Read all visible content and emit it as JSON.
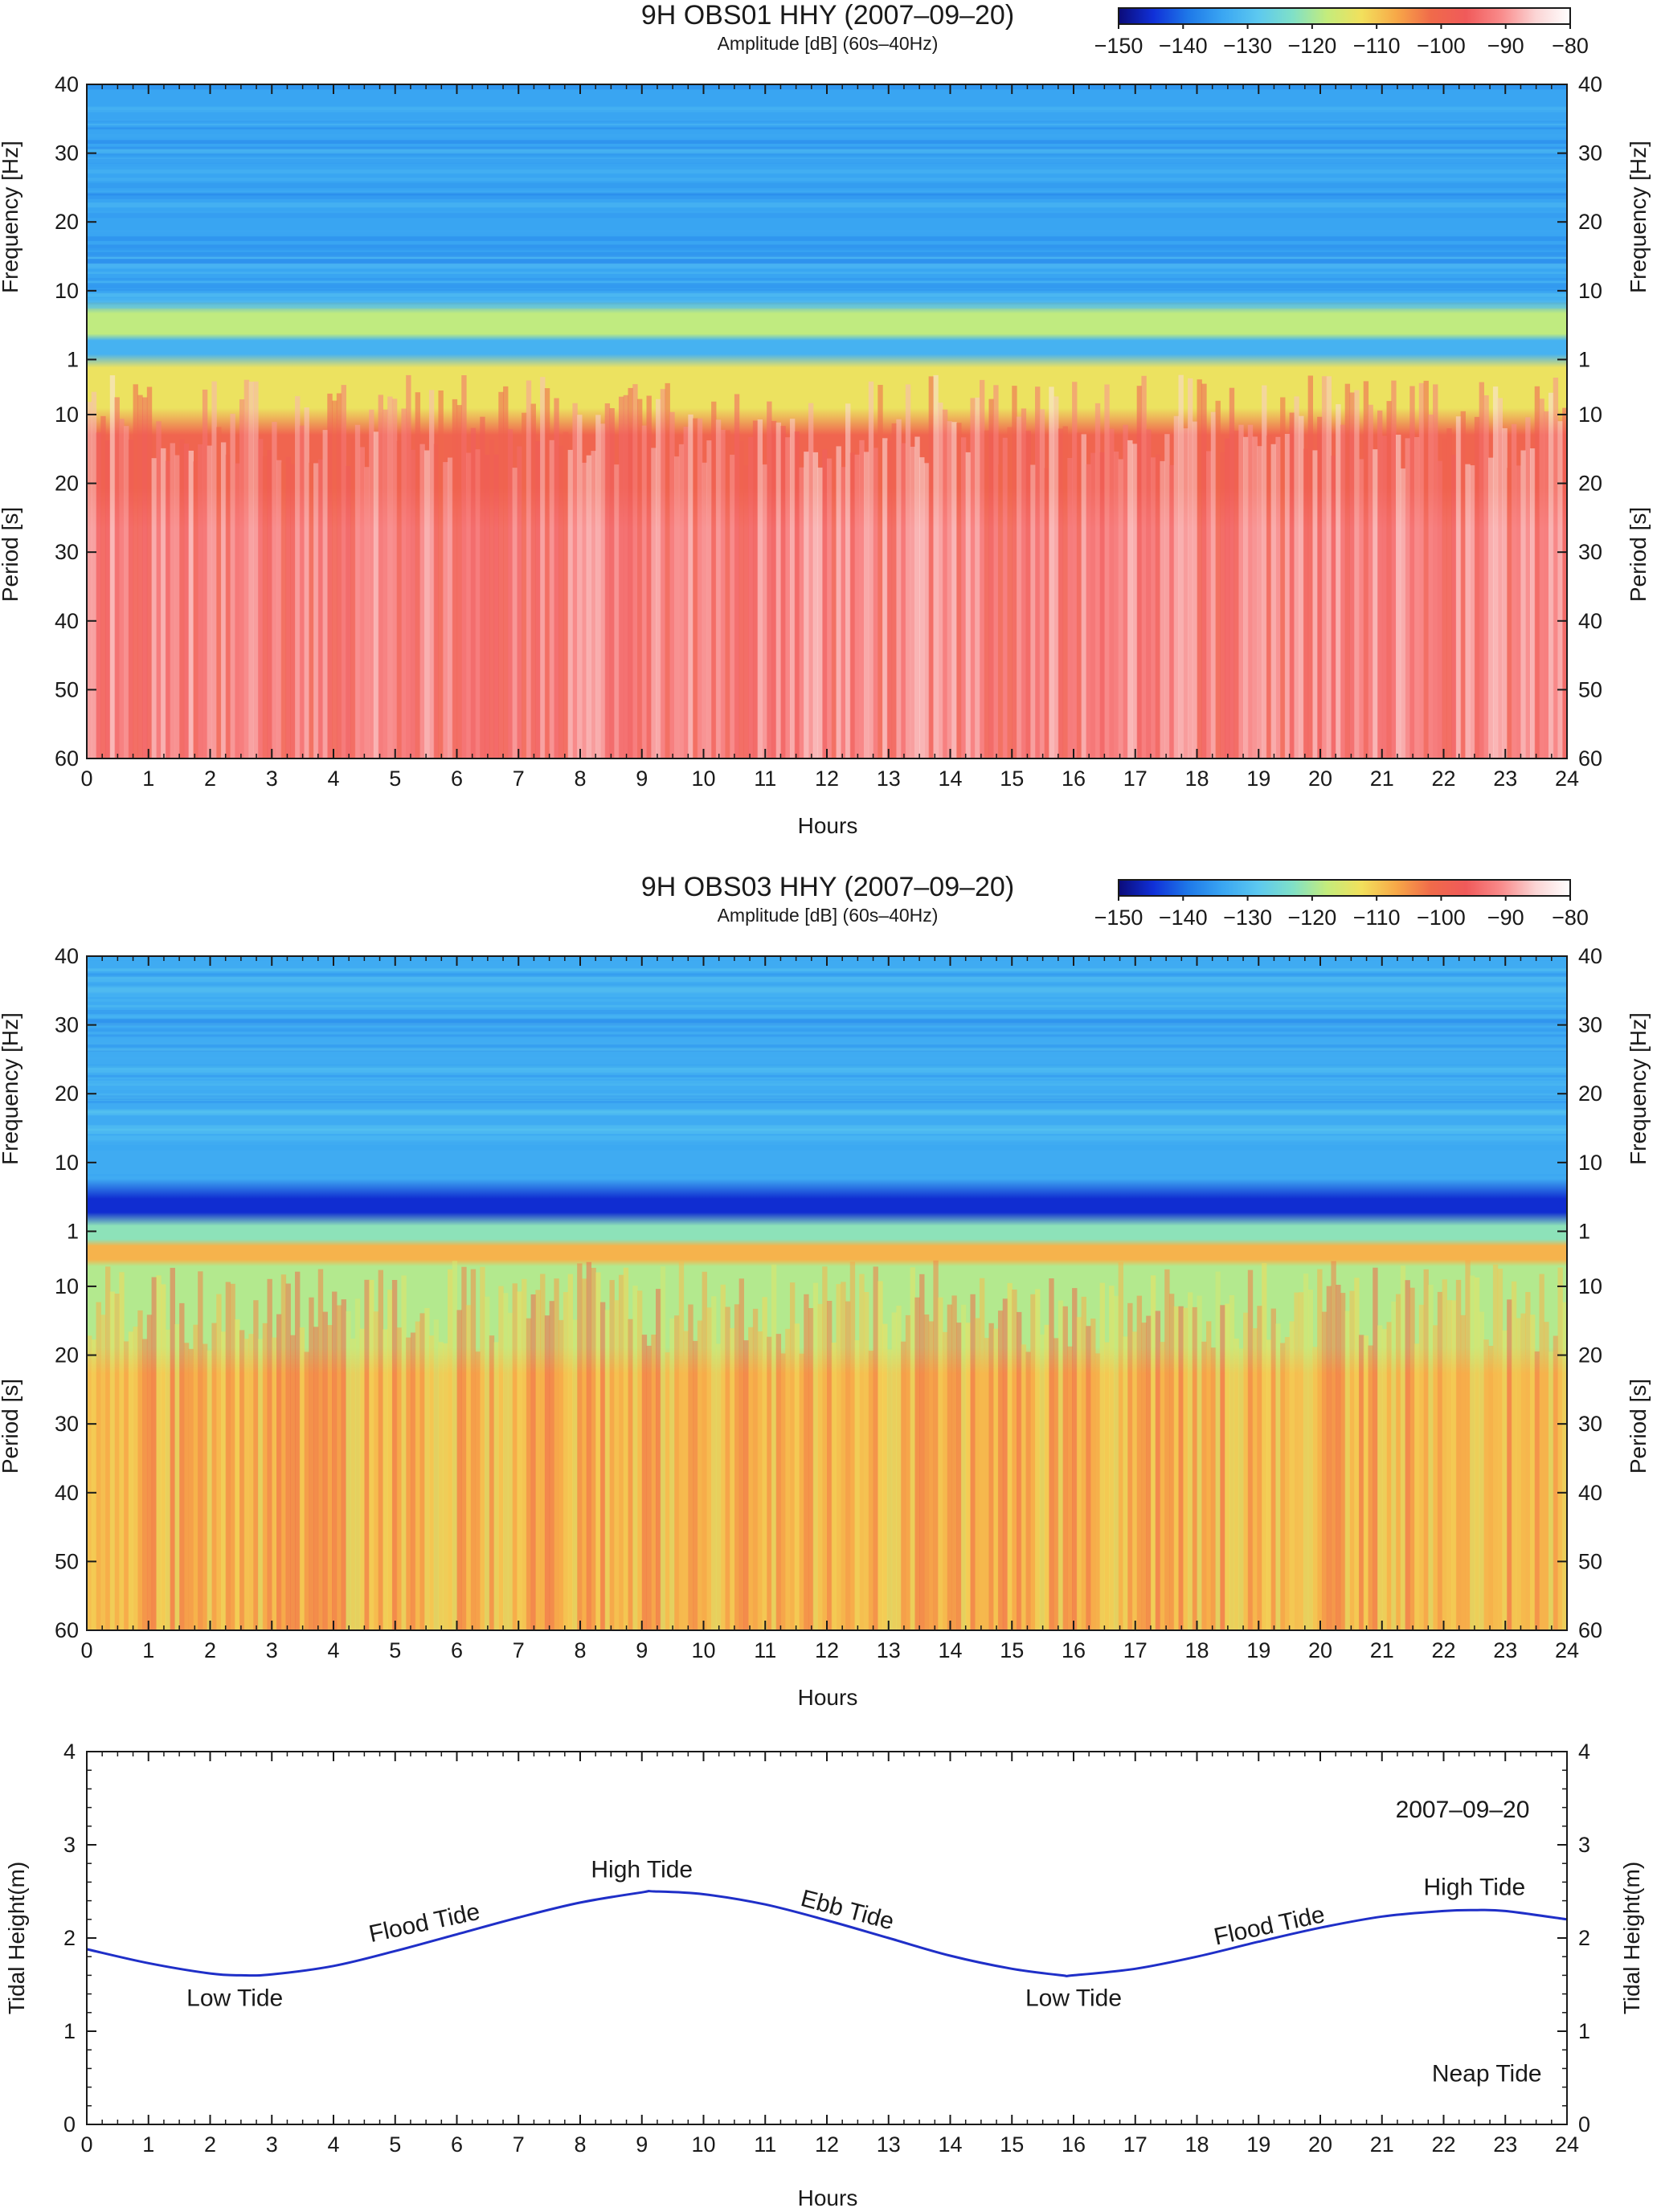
{
  "colors": {
    "tide_line": "#1f2fc8",
    "axis": "#1a1a1a",
    "colormap": [
      "#0b0b78",
      "#1030d8",
      "#1e78e8",
      "#3aa6f2",
      "#5cc8f0",
      "#7fe0c8",
      "#c4ec7c",
      "#f2e05c",
      "#f7a848",
      "#f06a4a",
      "#f05a5a",
      "#f98a8a",
      "#fbd4d4",
      "#ffffff"
    ]
  },
  "chart_data": [
    {
      "type": "heatmap",
      "id": "obs01",
      "title": "9H OBS01 HHY (2007‒09‒20)",
      "colorbar_label": "Amplitude [dB] (60s–40Hz)",
      "colorbar_range": [
        -150,
        -80
      ],
      "colorbar_ticks": [
        "−150",
        "−140",
        "−130",
        "−120",
        "−110",
        "−100",
        "−90",
        "−80"
      ],
      "xlabel": "Hours",
      "xlim": [
        0,
        24
      ],
      "x_ticks": [
        "0",
        "1",
        "2",
        "3",
        "4",
        "5",
        "6",
        "7",
        "8",
        "9",
        "10",
        "11",
        "12",
        "13",
        "14",
        "15",
        "16",
        "17",
        "18",
        "19",
        "20",
        "21",
        "22",
        "23",
        "24"
      ],
      "ylabel_top": "Frequency [Hz]",
      "ylabel_bottom": "Period [s]",
      "freq_ticks": [
        "40",
        "30",
        "20",
        "10"
      ],
      "center_tick": "1",
      "period_ticks": [
        "10",
        "20",
        "30",
        "40",
        "50",
        "60"
      ],
      "band_profile_db": [
        {
          "band": "40–10 Hz",
          "mean_db": -134
        },
        {
          "band": "7–5 Hz",
          "mean_db": -118
        },
        {
          "band": "5–1 Hz",
          "mean_db": -132
        },
        {
          "band": "1 Hz–10 s",
          "mean_db": -113
        },
        {
          "band": "10–20 s",
          "mean_db": -100
        },
        {
          "band": "20–60 s",
          "mean_db": -92
        }
      ]
    },
    {
      "type": "heatmap",
      "id": "obs03",
      "title": "9H OBS03 HHY (2007‒09‒20)",
      "colorbar_label": "Amplitude [dB] (60s–40Hz)",
      "colorbar_range": [
        -150,
        -80
      ],
      "colorbar_ticks": [
        "−150",
        "−140",
        "−130",
        "−120",
        "−110",
        "−100",
        "−90",
        "−80"
      ],
      "xlabel": "Hours",
      "xlim": [
        0,
        24
      ],
      "x_ticks": [
        "0",
        "1",
        "2",
        "3",
        "4",
        "5",
        "6",
        "7",
        "8",
        "9",
        "10",
        "11",
        "12",
        "13",
        "14",
        "15",
        "16",
        "17",
        "18",
        "19",
        "20",
        "21",
        "22",
        "23",
        "24"
      ],
      "ylabel_top": "Frequency [Hz]",
      "ylabel_bottom": "Period [s]",
      "freq_ticks": [
        "40",
        "30",
        "20",
        "10"
      ],
      "center_tick": "1",
      "period_ticks": [
        "10",
        "20",
        "30",
        "40",
        "50",
        "60"
      ],
      "band_profile_db": [
        {
          "band": "40–10 Hz",
          "mean_db": -133
        },
        {
          "band": "5–4 Hz",
          "mean_db": -145
        },
        {
          "band": "4–1 Hz",
          "mean_db": -122
        },
        {
          "band": "1 Hz–5 s",
          "mean_db": -108
        },
        {
          "band": "5–20 s",
          "mean_db": -119
        },
        {
          "band": "20–60 s",
          "mean_db": -108
        }
      ]
    },
    {
      "type": "line",
      "id": "tide",
      "xlabel": "Hours",
      "ylabel": "Tidal Height(m)",
      "xlim": [
        0,
        24
      ],
      "ylim": [
        0,
        4
      ],
      "x_ticks": [
        "0",
        "1",
        "2",
        "3",
        "4",
        "5",
        "6",
        "7",
        "8",
        "9",
        "10",
        "11",
        "12",
        "13",
        "14",
        "15",
        "16",
        "17",
        "18",
        "19",
        "20",
        "21",
        "22",
        "23",
        "24"
      ],
      "y_ticks": [
        "0",
        "1",
        "2",
        "3",
        "4"
      ],
      "series": [
        {
          "name": "Tidal height",
          "x": [
            0,
            1,
            2,
            2.5,
            3,
            4,
            5,
            6,
            7,
            8,
            9,
            9.2,
            10,
            11,
            12,
            13,
            14,
            15,
            15.8,
            16,
            17,
            18,
            19,
            20,
            21,
            22,
            22.5,
            23,
            24
          ],
          "values": [
            1.88,
            1.73,
            1.62,
            1.6,
            1.61,
            1.7,
            1.86,
            2.04,
            2.22,
            2.38,
            2.49,
            2.5,
            2.47,
            2.36,
            2.19,
            2.0,
            1.81,
            1.67,
            1.6,
            1.6,
            1.67,
            1.8,
            1.96,
            2.11,
            2.23,
            2.29,
            2.3,
            2.29,
            2.2
          ]
        }
      ],
      "date_label": "2007‒09‒20",
      "annotations": [
        {
          "text": "Low Tide",
          "x": 2.4,
          "y": 1.27,
          "rotate": 0
        },
        {
          "text": "Flood Tide",
          "x": 5.5,
          "y": 2.08,
          "rotate": -12
        },
        {
          "text": "High Tide",
          "x": 9.0,
          "y": 2.65,
          "rotate": 0
        },
        {
          "text": "Ebb Tide",
          "x": 12.3,
          "y": 2.22,
          "rotate": 15
        },
        {
          "text": "Low Tide",
          "x": 16.0,
          "y": 1.27,
          "rotate": 0
        },
        {
          "text": "Flood Tide",
          "x": 19.2,
          "y": 2.05,
          "rotate": -12
        },
        {
          "text": "High Tide",
          "x": 22.5,
          "y": 2.46,
          "rotate": 0
        },
        {
          "text": "Neap Tide",
          "x": 22.7,
          "y": 0.46,
          "rotate": 0
        }
      ]
    }
  ]
}
